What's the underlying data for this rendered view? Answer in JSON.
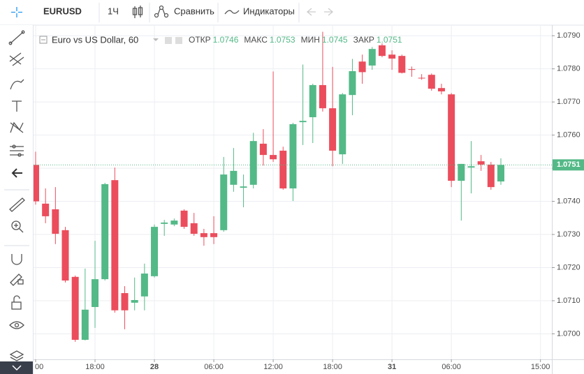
{
  "toolbar": {
    "symbol": "EURUSD",
    "interval": "1Ч",
    "compare": "Сравнить",
    "indicators": "Индикаторы"
  },
  "chart_data": {
    "type": "candlestick",
    "title": "Euro vs US Dollar, 60",
    "ohlc_labels": [
      {
        "label": "ОТКР",
        "value": "1.0746"
      },
      {
        "label": "МАКС",
        "value": "1.0753"
      },
      {
        "label": "МИН",
        "value": "1.0745"
      },
      {
        "label": "ЗАКР",
        "value": "1.0751"
      }
    ],
    "categories": [
      "00",
      null,
      null,
      null,
      null,
      null,
      "18:00",
      null,
      null,
      null,
      null,
      null,
      "28",
      null,
      null,
      null,
      null,
      null,
      "06:00",
      null,
      null,
      null,
      null,
      null,
      "12:00",
      null,
      null,
      null,
      null,
      null,
      "18:00",
      null,
      null,
      null,
      null,
      null,
      "31",
      null,
      null,
      null,
      null,
      null,
      "06:00",
      null,
      null,
      null,
      null,
      null,
      null,
      null,
      null,
      "15:00"
    ],
    "open": [
      1.0751,
      1.07393,
      1.07376,
      1.07313,
      1.07172,
      1.06982,
      1.07081,
      1.07165,
      1.07464,
      1.07123,
      1.07094,
      1.07113,
      1.07174,
      1.07332,
      1.0733,
      1.07372,
      1.07334,
      1.07304,
      1.07304,
      1.07313,
      1.0745,
      1.07441,
      1.0745,
      1.07574,
      1.0754,
      1.07553,
      1.07439,
      1.07639,
      1.07654,
      1.07751,
      1.07681,
      1.07542,
      1.07721,
      1.07822,
      1.0781,
      1.07871,
      1.07843,
      1.07839,
      1.07799,
      1.07773,
      1.07782,
      1.07742,
      1.07723,
      1.07462,
      1.07502,
      1.07521,
      1.07511,
      1.0746,
      null,
      null,
      null,
      null
    ],
    "high": [
      1.0755,
      1.07439,
      1.07443,
      1.07323,
      1.07176,
      1.07197,
      1.07281,
      1.07456,
      1.07502,
      1.07144,
      1.0717,
      1.07212,
      1.0733,
      1.07344,
      1.07348,
      1.07376,
      1.07365,
      1.07317,
      1.07355,
      1.07534,
      1.07561,
      1.07481,
      1.07607,
      1.07618,
      1.07792,
      1.07565,
      1.07637,
      1.07813,
      1.07755,
      1.07912,
      1.07806,
      1.07727,
      1.0783,
      1.07843,
      1.07866,
      1.07877,
      1.07856,
      1.07843,
      1.07807,
      1.07784,
      1.07786,
      1.07755,
      1.07727,
      1.07513,
      1.07582,
      1.0754,
      1.07519,
      1.0753,
      null,
      null,
      null,
      null
    ],
    "low": [
      1.0739,
      1.07334,
      1.07271,
      1.07155,
      1.06976,
      1.0698,
      1.07018,
      1.07161,
      1.07064,
      1.07014,
      1.07071,
      1.07071,
      1.0717,
      1.07296,
      1.07325,
      1.07317,
      1.07296,
      1.07266,
      1.07271,
      1.07308,
      1.07429,
      1.07382,
      1.07439,
      1.07508,
      1.07519,
      1.07435,
      1.07401,
      1.0757,
      1.07576,
      1.07671,
      1.07506,
      1.07513,
      1.0766,
      1.07755,
      1.07797,
      1.07835,
      1.07797,
      1.07786,
      1.07776,
      1.07767,
      1.07734,
      1.07723,
      1.07443,
      1.07342,
      1.07424,
      1.07492,
      1.07435,
      1.0745,
      null,
      null,
      null,
      null
    ],
    "close": [
      1.074,
      1.07355,
      1.07302,
      1.07161,
      1.06982,
      1.07073,
      1.07165,
      1.07452,
      1.07071,
      1.07071,
      1.07102,
      1.07182,
      1.07323,
      1.07336,
      1.07342,
      1.07323,
      1.07302,
      1.07292,
      1.07292,
      1.07481,
      1.07492,
      1.07445,
      1.07582,
      1.0754,
      1.07527,
      1.07439,
      1.07633,
      1.07643,
      1.07751,
      1.07681,
      1.07553,
      1.07723,
      1.07793,
      1.0779,
      1.0786,
      1.07839,
      1.07831,
      1.07788,
      1.07797,
      1.07772,
      1.0774,
      1.07732,
      1.07462,
      1.07513,
      1.07506,
      1.07511,
      1.07443,
      1.0751,
      null,
      null,
      null,
      null
    ],
    "up_color": "#53b987",
    "down_color": "#eb4d5c",
    "ylim": [
      1.06923,
      1.07932
    ],
    "yticks": [
      {
        "value": 1.07,
        "label": "1.0700"
      },
      {
        "value": 1.071,
        "label": "1.0710"
      },
      {
        "value": 1.072,
        "label": "1.0720"
      },
      {
        "value": 1.073,
        "label": "1.0730"
      },
      {
        "value": 1.074,
        "label": "1.0740"
      },
      {
        "value": 1.075,
        "label": "1.0750"
      },
      {
        "value": 1.076,
        "label": "1.0760"
      },
      {
        "value": 1.077,
        "label": "1.0770"
      },
      {
        "value": 1.078,
        "label": "1.0780"
      },
      {
        "value": 1.079,
        "label": "1.0790"
      }
    ],
    "last_price": {
      "value": 1.0751,
      "label": "1.0751"
    },
    "grid": true
  }
}
